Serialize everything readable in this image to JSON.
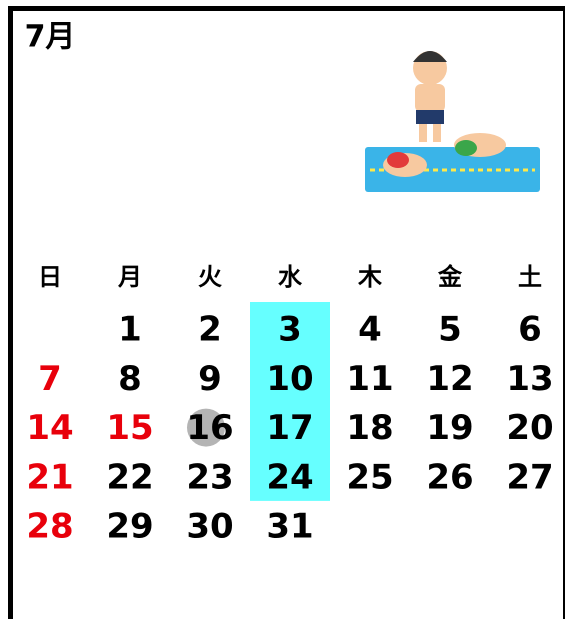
{
  "header": {
    "title": "7月"
  },
  "calendar": {
    "weekdays": [
      "日",
      "月",
      "火",
      "水",
      "木",
      "金",
      "土"
    ],
    "weeks": [
      [
        null,
        1,
        2,
        3,
        4,
        5,
        6
      ],
      [
        7,
        8,
        9,
        10,
        11,
        12,
        13
      ],
      [
        14,
        15,
        16,
        17,
        18,
        19,
        20
      ],
      [
        21,
        22,
        23,
        24,
        25,
        26,
        27
      ],
      [
        28,
        29,
        30,
        31,
        null,
        null,
        null
      ]
    ],
    "holidays": [
      7,
      14,
      15,
      21,
      28
    ],
    "holiday_color": "#e8000b",
    "highlight_days": [
      3,
      10,
      17,
      24
    ],
    "highlight_color": "#66ffff",
    "marked_day": 16,
    "marked_color": "#b4b4b4"
  }
}
